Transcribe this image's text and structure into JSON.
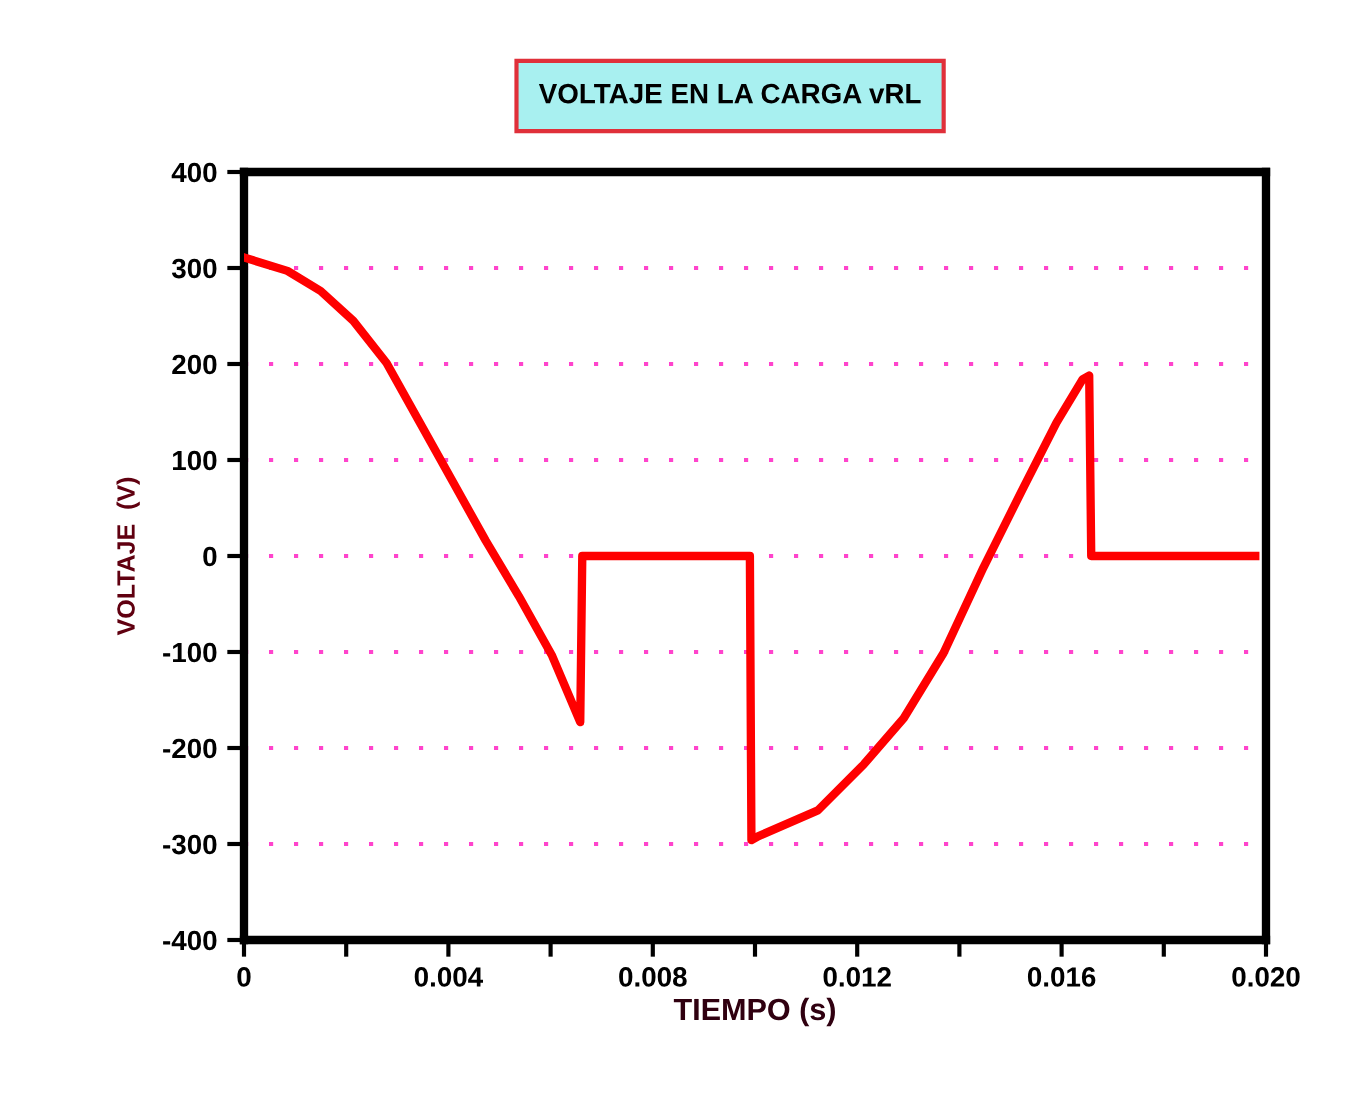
{
  "chart_data": {
    "type": "line",
    "title": "VOLTAJE EN LA CARGA vRL",
    "xlabel": "TIEMPO (s)",
    "ylabel": "VOLTAJE  (V)",
    "x": [
      0,
      0.00085,
      0.0015,
      0.00214,
      0.00279,
      0.00344,
      0.00409,
      0.00473,
      0.00538,
      0.00603,
      0.00658,
      0.00662,
      0.0099,
      0.00993,
      0.01006,
      0.01123,
      0.01213,
      0.01291,
      0.01369,
      0.01447,
      0.01525,
      0.0159,
      0.01641,
      0.01654,
      0.01658,
      0.01979
    ],
    "series": [
      {
        "color": "#ff0000",
        "values": [
          311,
          297,
          276,
          245,
          201,
          139,
          77,
          16,
          -42,
          -104,
          -173,
          0,
          0,
          -296,
          -292,
          -265,
          -217,
          -169,
          -101,
          -12,
          71,
          139,
          184,
          188,
          0,
          0
        ]
      }
    ],
    "xlim": [
      0,
      0.02
    ],
    "ylim": [
      -400,
      400
    ],
    "xticks": [
      0,
      {
        "value": 0.002,
        "label": null
      },
      {
        "value": 0.004,
        "label": "0.004"
      },
      {
        "value": 0.006,
        "label": null
      },
      {
        "value": 0.008,
        "label": "0.008"
      },
      {
        "value": 0.01,
        "label": null
      },
      {
        "value": 0.012,
        "label": "0.012"
      },
      {
        "value": 0.014,
        "label": null
      },
      {
        "value": 0.016,
        "label": "0.016"
      },
      {
        "value": 0.018,
        "label": null
      },
      {
        "value": 0.02,
        "label": "0.020"
      }
    ],
    "yticks": [
      -400,
      -300,
      -200,
      -100,
      0,
      100,
      200,
      300,
      400
    ],
    "grid": "y",
    "marker": "none",
    "line_style": "solid"
  }
}
